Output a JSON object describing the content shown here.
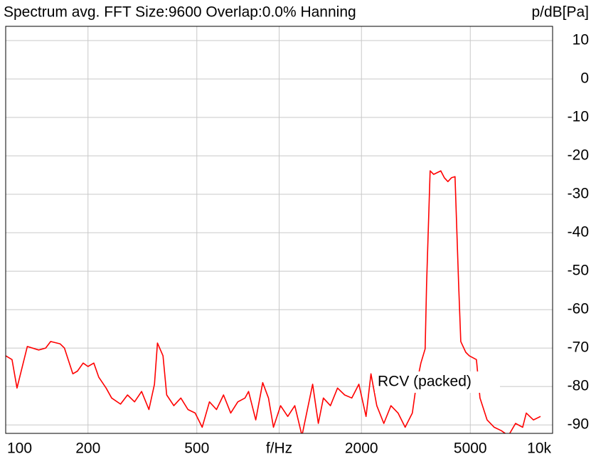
{
  "chart_data": {
    "type": "line",
    "title": "Spectrum avg.  FFT Size:9600  Overlap:0.0%  Hanning",
    "y_label": "p/dB[Pa]",
    "annotation": "RCV (packed)",
    "xscale": "log",
    "grid": true,
    "xlim": [
      100,
      10000
    ],
    "xticks": [
      100,
      200,
      500,
      {
        "value": 1000,
        "label": "f/Hz"
      },
      2000,
      5000,
      {
        "value": 10000,
        "label": "10k"
      }
    ],
    "ylim": [
      -92.2,
      13.7
    ],
    "yticks": [
      10,
      0,
      -10,
      -20,
      -30,
      -40,
      -50,
      -60,
      -70,
      -80,
      -90
    ],
    "series": [
      {
        "color": "#ff0000",
        "x": [
          100,
          105.5,
          110,
          120,
          132,
          140,
          146,
          158,
          164,
          176,
          183,
          192,
          200,
          210,
          219,
          233,
          244,
          263,
          279,
          296,
          314,
          334,
          350,
          359,
          376,
          388,
          412,
          437,
          464,
          493,
          523,
          556,
          590,
          626,
          665,
          706,
          750,
          773,
          821,
          871,
          914,
          953,
          1012,
          1075,
          1141,
          1212,
          1326,
          1391,
          1451,
          1540,
          1635,
          1736,
          1844,
          1957,
          2079,
          2167,
          2275,
          2415,
          2564,
          2722,
          2890,
          3069,
          3162,
          3298,
          3419,
          3460,
          3565,
          3674,
          3901,
          4019,
          4141,
          4268,
          4398,
          4533,
          4615,
          4812,
          4958,
          5265,
          5425,
          5760,
          6115,
          6494,
          6895,
          7320,
          7773,
          8011,
          8506,
          9031
        ],
        "values": [
          -72,
          -73,
          -80.4,
          -69.6,
          -70.5,
          -70,
          -68.3,
          -68.9,
          -70,
          -76.7,
          -76,
          -73.9,
          -74.8,
          -73.9,
          -77.6,
          -80.4,
          -83,
          -84.6,
          -82.2,
          -84,
          -81.3,
          -86,
          -79.4,
          -68.7,
          -72,
          -82.2,
          -85,
          -83,
          -86,
          -86.9,
          -90.6,
          -84,
          -86,
          -82.2,
          -86.9,
          -84,
          -83,
          -81.3,
          -88.7,
          -79,
          -83,
          -90.6,
          -85,
          -87.8,
          -85,
          -92.8,
          -79.4,
          -89.6,
          -83,
          -85,
          -80.4,
          -82.2,
          -83,
          -79.4,
          -87.8,
          -76.7,
          -85,
          -89.6,
          -85,
          -86.9,
          -90.6,
          -86.9,
          -80.4,
          -73.9,
          -70.2,
          -53.5,
          -23.9,
          -24.8,
          -23.9,
          -25.7,
          -26.7,
          -25.7,
          -25.4,
          -53.5,
          -68.3,
          -71.1,
          -72,
          -73,
          -83,
          -88.7,
          -90.6,
          -91.5,
          -92.8,
          -89.6,
          -90.6,
          -86.9,
          -88.7,
          -87.8
        ]
      }
    ]
  }
}
